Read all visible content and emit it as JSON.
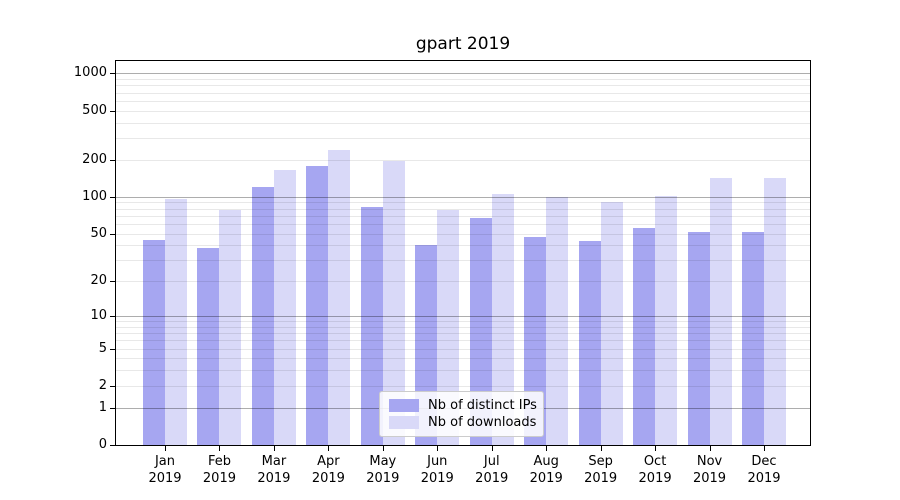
{
  "chart_data": {
    "type": "bar",
    "title": "gpart 2019",
    "x_year_label": "2019",
    "categories": [
      "Jan",
      "Feb",
      "Mar",
      "Apr",
      "May",
      "Jun",
      "Jul",
      "Aug",
      "Sep",
      "Oct",
      "Nov",
      "Dec"
    ],
    "series": [
      {
        "name": "Nb of distinct IPs",
        "color": "#a6a6f1",
        "values": [
          44,
          38,
          121,
          178,
          82,
          40,
          67,
          47,
          43,
          56,
          51,
          51
        ]
      },
      {
        "name": "Nb of downloads",
        "color": "#d9d9f8",
        "values": [
          96,
          78,
          165,
          238,
          196,
          78,
          106,
          100,
          90,
          102,
          143,
          143
        ]
      }
    ],
    "y_scale": "log1p",
    "y_ticks": [
      0,
      1,
      2,
      5,
      10,
      20,
      50,
      100,
      200,
      500,
      1000
    ],
    "y_major_gridlines": [
      1,
      10,
      100,
      1000
    ],
    "y_minor_gridlines": [
      2,
      3,
      4,
      5,
      6,
      7,
      8,
      9,
      20,
      30,
      40,
      50,
      60,
      70,
      80,
      90,
      200,
      300,
      400,
      500,
      600,
      700,
      800,
      900
    ],
    "ylim": [
      0,
      1283
    ],
    "grid": true,
    "legend_position": "lower center"
  },
  "colors": {
    "background": "#ffffff",
    "axis": "#000000",
    "text": "#000000",
    "major_grid": "rgba(0,0,0,0.32)",
    "minor_grid": "rgba(0,0,0,0.09)",
    "legend_border": "#cccccc"
  }
}
